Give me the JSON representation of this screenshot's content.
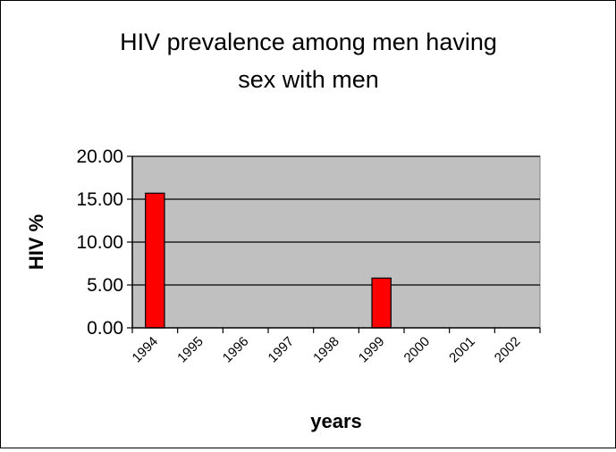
{
  "chart_data": {
    "type": "bar",
    "title_lines": [
      "HIV prevalence among men having",
      "sex with men"
    ],
    "xlabel": "years",
    "ylabel": "HIV %",
    "categories": [
      "1994",
      "1995",
      "1996",
      "1997",
      "1998",
      "1999",
      "2000",
      "2001",
      "2002"
    ],
    "values": [
      15.7,
      null,
      null,
      null,
      null,
      5.8,
      null,
      null,
      null
    ],
    "ylim": [
      0,
      20
    ],
    "yticks": [
      "0.00",
      "5.00",
      "10.00",
      "15.00",
      "20.00"
    ],
    "grid": true,
    "legend": "none",
    "colors": {
      "bar": "#ff0000",
      "plot_background": "#c0c0c0"
    }
  }
}
